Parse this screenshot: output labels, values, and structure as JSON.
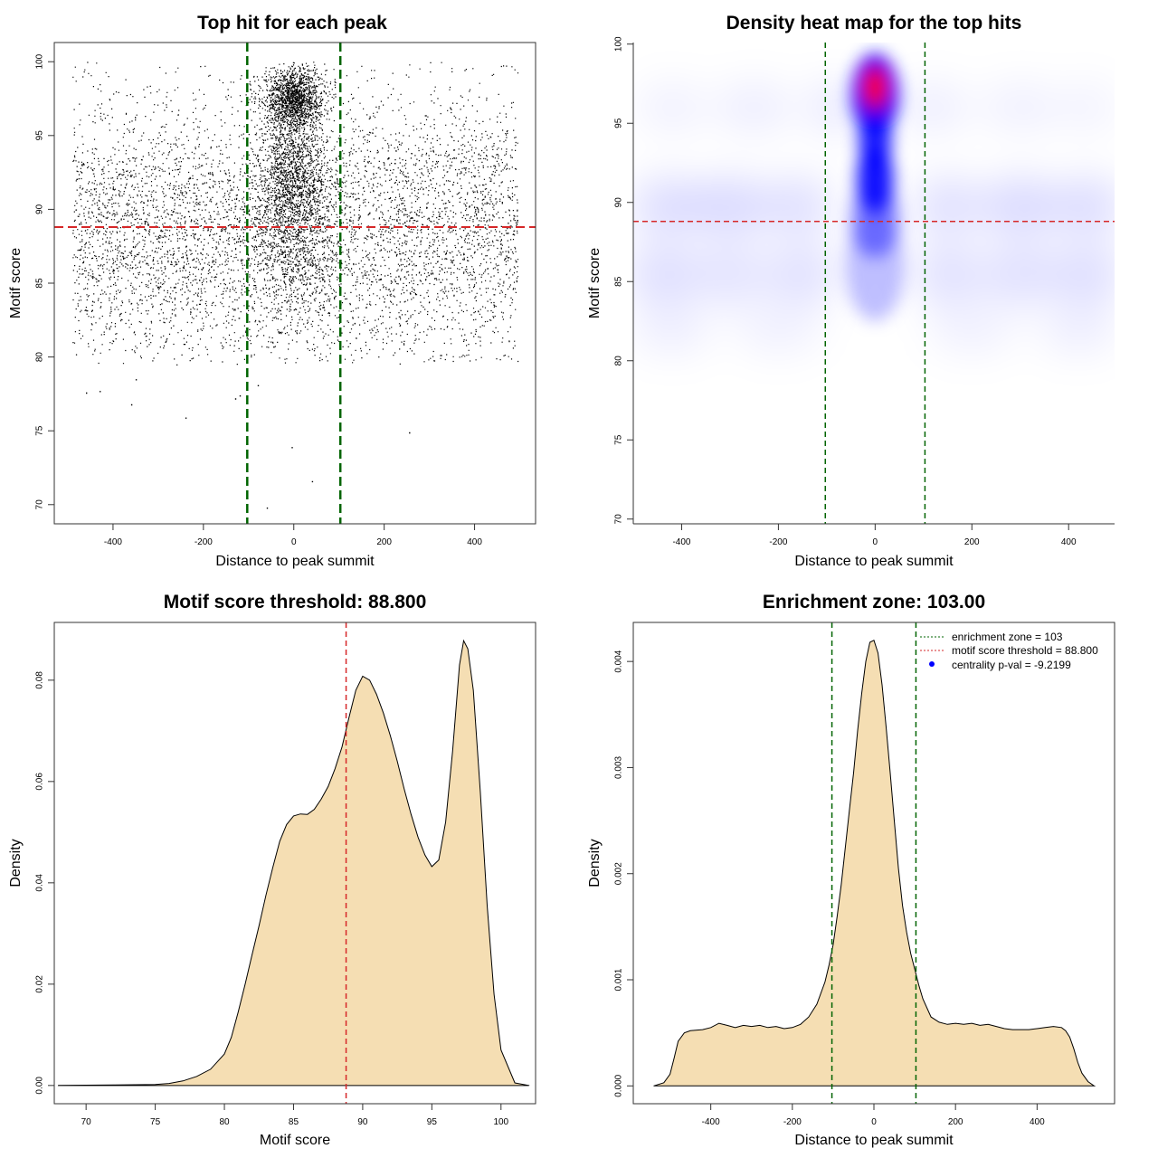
{
  "chart_data": [
    {
      "id": "scatter",
      "type": "scatter",
      "title": "Top hit for each peak",
      "xlabel": "Distance to peak summit",
      "ylabel": "Motif score",
      "xlim": [
        -530,
        535
      ],
      "ylim": [
        68.7,
        101.3
      ],
      "xticks": [
        -400,
        -200,
        0,
        200,
        400
      ],
      "yticks": [
        70,
        75,
        80,
        85,
        90,
        95,
        100
      ],
      "vlines": [
        -103,
        103
      ],
      "hline": 88.8,
      "colors": {
        "points": "#000000",
        "zone": "#006400",
        "threshold": "#d62728"
      },
      "point_clouds": [
        {
          "name": "background",
          "n": 5600,
          "x_range": [
            -490,
            495
          ],
          "y_mean": 88.5,
          "y_sd": 4.8,
          "y_range": [
            79.5,
            100
          ]
        },
        {
          "name": "central-top",
          "n": 1600,
          "x_mean": 0,
          "x_sd": 32,
          "y_mean": 97.5,
          "y_sd": 1.1,
          "y_range": [
            92,
            100
          ]
        },
        {
          "name": "central-middle",
          "n": 1500,
          "x_mean": 0,
          "x_sd": 38,
          "y_mean": 92,
          "y_sd": 2.3,
          "y_range": [
            82,
            99
          ]
        },
        {
          "name": "central-low",
          "n": 500,
          "x_mean": 0,
          "x_sd": 55,
          "y_mean": 86.5,
          "y_sd": 2.5,
          "y_range": [
            80,
            92
          ]
        }
      ],
      "outliers": [
        [
          -460,
          77.6
        ],
        [
          -430,
          77.7
        ],
        [
          -360,
          76.8
        ],
        [
          -120,
          77.4
        ],
        [
          -130,
          77.2
        ],
        [
          -240,
          75.9
        ],
        [
          -5,
          73.9
        ],
        [
          40,
          71.6
        ],
        [
          -60,
          69.8
        ],
        [
          255,
          74.9
        ],
        [
          -350,
          78.5
        ],
        [
          -80,
          78.1
        ]
      ]
    },
    {
      "id": "heatmap",
      "type": "heatmap",
      "title": "Density heat map for the top hits",
      "xlabel": "Distance to peak summit",
      "ylabel": "Motif score",
      "xlim": [
        -500,
        495
      ],
      "ylim": [
        69.7,
        100.1
      ],
      "xticks": [
        -400,
        -200,
        0,
        200,
        400
      ],
      "yticks": [
        70,
        75,
        80,
        85,
        90,
        95,
        100
      ],
      "vlines": [
        -103,
        103
      ],
      "hline": 88.8,
      "colors": {
        "low": "#ffffff",
        "mid": "#0000ff",
        "high": "#ff0000",
        "zone": "#006400",
        "threshold": "#d62728"
      }
    },
    {
      "id": "score-density",
      "type": "area",
      "title": "Motif score threshold: 88.800",
      "xlabel": "Motif score",
      "ylabel": "Density",
      "xlim": [
        67.7,
        102.5
      ],
      "ylim": [
        -0.0036,
        0.0914
      ],
      "xticks": [
        70,
        75,
        80,
        85,
        90,
        95,
        100
      ],
      "yticks": [
        0.0,
        0.02,
        0.04,
        0.06,
        0.08
      ],
      "ytick_labels": [
        "0.00",
        "0.02",
        "0.04",
        "0.06",
        "0.08"
      ],
      "vline": 88.8,
      "colors": {
        "fill": "#f5deb3",
        "line": "#000000",
        "threshold": "#d62728"
      },
      "x": [
        68,
        72,
        75,
        76,
        77,
        78,
        79,
        80,
        80.5,
        81,
        81.5,
        82,
        82.5,
        83,
        83.5,
        84,
        84.5,
        85,
        85.5,
        86,
        86.5,
        87,
        87.5,
        88,
        88.5,
        89,
        89.5,
        90,
        90.5,
        91,
        91.5,
        92,
        92.5,
        93,
        93.5,
        94,
        94.5,
        95,
        95.5,
        96,
        96.5,
        97,
        97.3,
        97.6,
        98,
        98.5,
        99,
        99.5,
        100,
        101,
        102
      ],
      "y": [
        0.0,
        0.0001,
        0.0002,
        0.0004,
        0.0009,
        0.0018,
        0.0032,
        0.0062,
        0.0095,
        0.0145,
        0.02,
        0.0258,
        0.0315,
        0.0375,
        0.043,
        0.0482,
        0.0515,
        0.0532,
        0.0536,
        0.0535,
        0.0545,
        0.0565,
        0.059,
        0.0625,
        0.0668,
        0.0725,
        0.078,
        0.0808,
        0.08,
        0.0772,
        0.0735,
        0.069,
        0.064,
        0.0585,
        0.0535,
        0.049,
        0.0455,
        0.0432,
        0.0445,
        0.052,
        0.066,
        0.083,
        0.0878,
        0.0862,
        0.078,
        0.058,
        0.0355,
        0.018,
        0.007,
        0.0005,
        0.0
      ]
    },
    {
      "id": "distance-density",
      "type": "area",
      "title": "Enrichment zone: 103.00",
      "xlabel": "Distance to peak summit",
      "ylabel": "Density",
      "xlim": [
        -590,
        590
      ],
      "ylim": [
        -0.000168,
        0.004368
      ],
      "xticks": [
        -400,
        -200,
        0,
        200,
        400
      ],
      "yticks": [
        0.0,
        0.001,
        0.002,
        0.003,
        0.004
      ],
      "ytick_labels": [
        "0.000",
        "0.001",
        "0.002",
        "0.003",
        "0.004"
      ],
      "vlines": [
        -103,
        103
      ],
      "colors": {
        "fill": "#f5deb3",
        "line": "#000000",
        "zone": "#006400",
        "threshold": "#d62728",
        "pval": "#0000ff"
      },
      "x": [
        -540,
        -515,
        -500,
        -490,
        -480,
        -465,
        -450,
        -420,
        -400,
        -380,
        -360,
        -340,
        -320,
        -300,
        -280,
        -260,
        -240,
        -220,
        -200,
        -180,
        -160,
        -140,
        -120,
        -110,
        -100,
        -90,
        -80,
        -70,
        -60,
        -50,
        -40,
        -30,
        -20,
        -10,
        0,
        10,
        20,
        30,
        40,
        50,
        60,
        70,
        80,
        90,
        100,
        110,
        120,
        140,
        160,
        180,
        200,
        220,
        240,
        260,
        280,
        300,
        320,
        340,
        360,
        380,
        400,
        420,
        440,
        460,
        470,
        480,
        490,
        500,
        510,
        525,
        540
      ],
      "y": [
        0.0,
        3e-05,
        0.00011,
        0.00026,
        0.00042,
        0.0005,
        0.00052,
        0.00053,
        0.00055,
        0.00059,
        0.00057,
        0.00055,
        0.00057,
        0.00056,
        0.00057,
        0.00055,
        0.00056,
        0.00054,
        0.00055,
        0.00058,
        0.00065,
        0.00077,
        0.00098,
        0.00114,
        0.00133,
        0.0016,
        0.0019,
        0.00225,
        0.0026,
        0.00295,
        0.00335,
        0.0037,
        0.004,
        0.00418,
        0.0042,
        0.00408,
        0.00378,
        0.00338,
        0.00295,
        0.0025,
        0.00205,
        0.0017,
        0.00145,
        0.00125,
        0.0011,
        0.00095,
        0.00082,
        0.00065,
        0.0006,
        0.00058,
        0.00059,
        0.00058,
        0.00059,
        0.00057,
        0.00058,
        0.00056,
        0.00054,
        0.00053,
        0.00053,
        0.00053,
        0.00054,
        0.00055,
        0.00056,
        0.00055,
        0.00052,
        0.00046,
        0.00035,
        0.00022,
        0.00012,
        4e-05,
        0.0
      ]
    }
  ],
  "legend": {
    "enrichment_label": "enrichment zone = 103",
    "threshold_label": "motif score threshold = 88.800",
    "pval_label": "centrality p-val = -9.2199"
  }
}
